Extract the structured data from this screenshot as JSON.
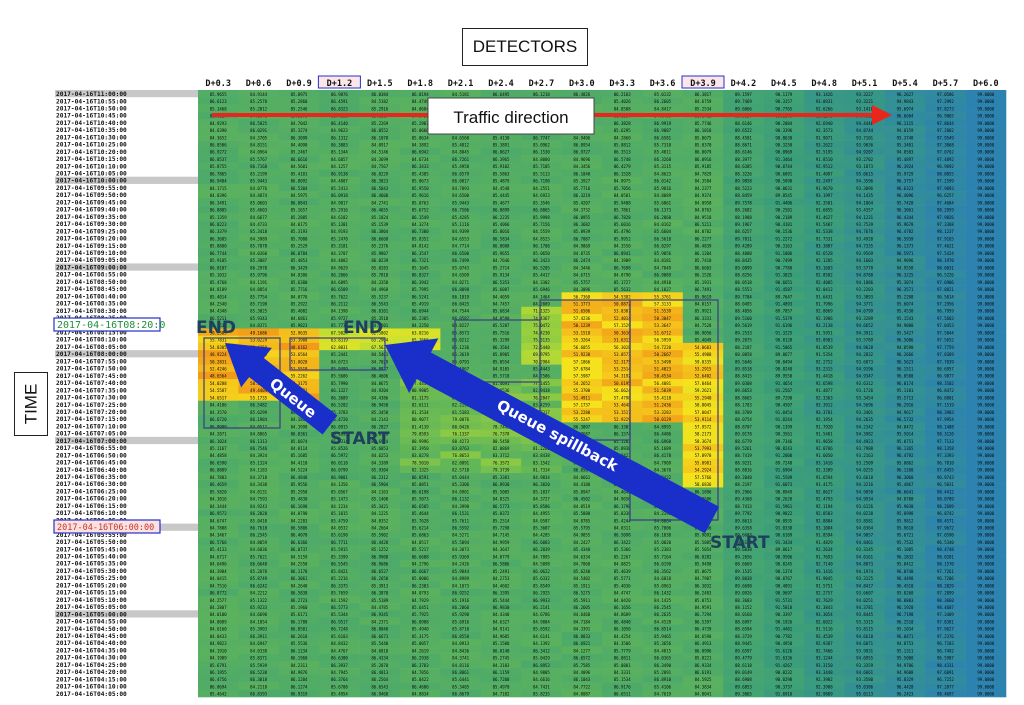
{
  "header": {
    "title": "DETECTORS"
  },
  "yaxis": {
    "label": "TIME"
  },
  "chart_data": {
    "type": "heatmap",
    "title": "DETECTORS",
    "ylabel": "TIME",
    "columns": [
      "D+0.3",
      "D+0.6",
      "D+0.9",
      "D+1.2",
      "D+1.5",
      "D+1.8",
      "D+2.1",
      "D+2.4",
      "D+2.7",
      "D+3.0",
      "D+3.3",
      "D+3.6",
      "D+3.9",
      "D+4.2",
      "D+4.5",
      "D+4.8",
      "D+5.1",
      "D+5.4",
      "D+5.7",
      "D+6.0"
    ],
    "highlighted_columns": [
      "D+1.2",
      "D+3.9"
    ],
    "rows": [
      "2017-04-16T11:00:00",
      "2017-04-16T10:55:00",
      "2017-04-16T10:50:00",
      "2017-04-16T10:45:00",
      "2017-04-16T10:40:00",
      "2017-04-16T10:35:00",
      "2017-04-16T10:30:00",
      "2017-04-16T10:25:00",
      "2017-04-16T10:20:00",
      "2017-04-16T10:15:00",
      "2017-04-16T10:10:00",
      "2017-04-16T10:05:00",
      "2017-04-16T10:00:00",
      "2017-04-16T09:55:00",
      "2017-04-16T09:50:00",
      "2017-04-16T09:45:00",
      "2017-04-16T09:40:00",
      "2017-04-16T09:35:00",
      "2017-04-16T09:30:00",
      "2017-04-16T09:25:00",
      "2017-04-16T09:20:00",
      "2017-04-16T09:15:00",
      "2017-04-16T09:10:00",
      "2017-04-16T09:05:00",
      "2017-04-16T09:00:00",
      "2017-04-16T08:55:00",
      "2017-04-16T08:50:00",
      "2017-04-16T08:45:00",
      "2017-04-16T08:40:00",
      "2017-04-16T08:35:00",
      "2017-04-16T08:30:00",
      "2017-04-16T08:25:00",
      "2017-04-16T08:20:00",
      "2017-04-16T08:15:00",
      "2017-04-16T08:10:00",
      "2017-04-16T08:05:00",
      "2017-04-16T08:00:00",
      "2017-04-16T07:55:00",
      "2017-04-16T07:50:00",
      "2017-04-16T07:45:00",
      "2017-04-16T07:40:00",
      "2017-04-16T07:35:00",
      "2017-04-16T07:30:00",
      "2017-04-16T07:25:00",
      "2017-04-16T07:20:00",
      "2017-04-16T07:15:00",
      "2017-04-16T07:10:00",
      "2017-04-16T07:05:00",
      "2017-04-16T07:00:00",
      "2017-04-16T06:55:00",
      "2017-04-16T06:50:00",
      "2017-04-16T06:45:00",
      "2017-04-16T06:40:00",
      "2017-04-16T06:35:00",
      "2017-04-16T06:30:00",
      "2017-04-16T06:25:00",
      "2017-04-16T06:20:00",
      "2017-04-16T06:15:00",
      "2017-04-16T06:10:00",
      "2017-04-16T06:05:00",
      "2017-04-16T06:00:00",
      "2017-04-16T05:55:00",
      "2017-04-16T05:50:00",
      "2017-04-16T05:45:00",
      "2017-04-16T05:40:00",
      "2017-04-16T05:35:00",
      "2017-04-16T05:30:00",
      "2017-04-16T05:25:00",
      "2017-04-16T05:20:00",
      "2017-04-16T05:15:00",
      "2017-04-16T05:10:00",
      "2017-04-16T05:05:00",
      "2017-04-16T05:00:00",
      "2017-04-16T04:55:00",
      "2017-04-16T04:50:00",
      "2017-04-16T04:45:00",
      "2017-04-16T04:40:00",
      "2017-04-16T04:35:00",
      "2017-04-16T04:30:00",
      "2017-04-16T04:25:00",
      "2017-04-16T04:20:00",
      "2017-04-16T04:15:00",
      "2017-04-16T04:10:00",
      "2017-04-16T04:05:00"
    ],
    "highlighted_rows": [
      {
        "label": "2017-04-16T08:20:0",
        "color": "#1f8f3a"
      },
      {
        "label": "2017-04-16T06:00:00",
        "color": "#c0392b"
      }
    ],
    "value_range": [
      40,
      100
    ],
    "colormap": [
      "#e85a12",
      "#f29a1a",
      "#f6e21c",
      "#cde22e",
      "#98cf3e",
      "#5fb55a",
      "#3b9e7a",
      "#2b7fb6"
    ]
  },
  "annotations": {
    "traffic_direction": "Traffic direction",
    "queue": "Queue",
    "queue_spillback": "Queue spillback",
    "end_1": "END",
    "end_2": "END",
    "start_1": "START",
    "start_2": "START"
  },
  "colors": {
    "arrow_blue": "#1a2fc9",
    "arrow_red": "#e8261b",
    "highlight_border": "#2233cc"
  }
}
